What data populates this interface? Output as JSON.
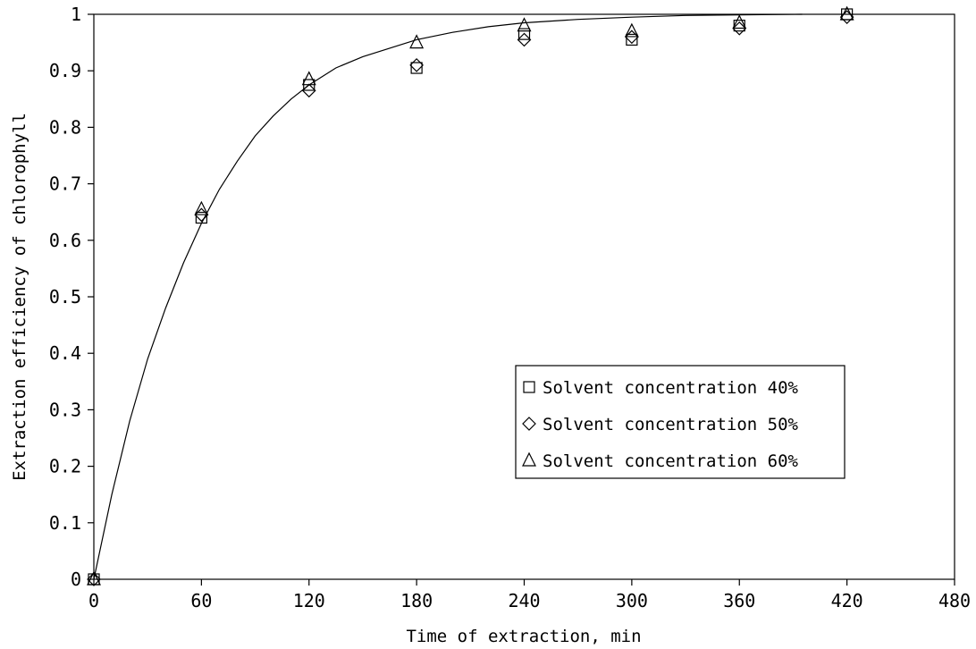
{
  "chart_data": {
    "type": "scatter",
    "xlabel": "Time of extraction, min",
    "ylabel": "Extraction efficiency of chlorophyll",
    "xlim": [
      0,
      480
    ],
    "ylim": [
      0,
      1
    ],
    "x_ticks": [
      0,
      60,
      120,
      180,
      240,
      300,
      360,
      420,
      480
    ],
    "y_ticks": [
      0,
      0.1,
      0.2,
      0.3,
      0.4,
      0.5,
      0.6,
      0.7,
      0.8,
      0.9,
      1
    ],
    "y_tick_labels": [
      "0",
      "0.1",
      "0.2",
      "0.3",
      "0.4",
      "0.5",
      "0.6",
      "0.7",
      "0.8",
      "0.9",
      "1"
    ],
    "grid": false,
    "legend_position": "center-right",
    "series": [
      {
        "name": "Solvent concentration 40%",
        "marker": "square",
        "x": [
          0,
          60,
          120,
          180,
          240,
          300,
          360,
          420
        ],
        "values": [
          0,
          0.64,
          0.875,
          0.905,
          0.965,
          0.955,
          0.98,
          1.0
        ]
      },
      {
        "name": "Solvent concentration 50%",
        "marker": "diamond",
        "x": [
          0,
          60,
          120,
          180,
          240,
          300,
          360,
          420
        ],
        "values": [
          0,
          0.645,
          0.865,
          0.91,
          0.955,
          0.96,
          0.975,
          0.995
        ]
      },
      {
        "name": "Solvent concentration 60%",
        "marker": "triangle",
        "x": [
          0,
          60,
          120,
          180,
          240,
          300,
          360,
          420
        ],
        "values": [
          0,
          0.655,
          0.885,
          0.95,
          0.98,
          0.97,
          0.985,
          1.0
        ]
      }
    ],
    "fit_curve": {
      "x": [
        0,
        10,
        20,
        30,
        40,
        50,
        60,
        70,
        80,
        90,
        100,
        110,
        120,
        135,
        150,
        165,
        180,
        200,
        220,
        240,
        270,
        300,
        330,
        360,
        395
      ],
      "values": [
        0,
        0.15,
        0.28,
        0.39,
        0.48,
        0.56,
        0.63,
        0.69,
        0.74,
        0.785,
        0.82,
        0.85,
        0.875,
        0.905,
        0.925,
        0.94,
        0.955,
        0.968,
        0.978,
        0.985,
        0.991,
        0.995,
        0.998,
        0.999,
        1.0
      ]
    }
  }
}
